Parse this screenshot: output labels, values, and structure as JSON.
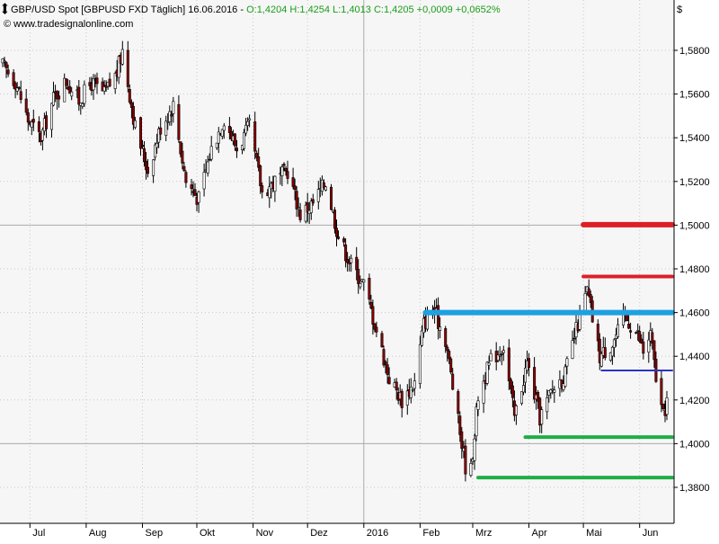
{
  "header": {
    "title": "GBP/USD Spot [GBPUSD FXD  Täglich] 16.06.2016 - ",
    "ohlc": "O:1,4204 H:1,4254 L:1,4013 C:1,4205 +0,0009 +0,0652%",
    "source": "© www.tradesignalonline.com",
    "currency_symbol": "$"
  },
  "colors": {
    "background": "#ffffff",
    "plot_background": "#f6f6f6",
    "grid": "#c8c8c8",
    "bull_candle": "#ffffff",
    "bear_candle": "#8b0000",
    "wick": "#000000",
    "ohlc_text": "#1a9e1a",
    "red": "#dd1f26",
    "blue": "#1da1e0",
    "navy": "#2b35c0",
    "green": "#1fae45"
  },
  "chart_data": {
    "type": "candlestick",
    "x_axis": {
      "range": [
        "2015-06-16",
        "2016-06-16"
      ],
      "month_labels": [
        {
          "date": "2015-07-01",
          "label": "Jul"
        },
        {
          "date": "2015-08-01",
          "label": "Aug"
        },
        {
          "date": "2015-09-01",
          "label": "Sep"
        },
        {
          "date": "2015-10-01",
          "label": "Okt"
        },
        {
          "date": "2015-11-01",
          "label": "Nov"
        },
        {
          "date": "2015-12-01",
          "label": "Dez"
        },
        {
          "date": "2016-01-01",
          "label": "2016"
        },
        {
          "date": "2016-02-01",
          "label": "Feb"
        },
        {
          "date": "2016-03-01",
          "label": "Mrz"
        },
        {
          "date": "2016-04-01",
          "label": "Apr"
        },
        {
          "date": "2016-05-01",
          "label": "Mai"
        },
        {
          "date": "2016-06-01",
          "label": "Jun"
        }
      ]
    },
    "y_axis": {
      "range": [
        1.37,
        1.59
      ],
      "ticks": [
        1.58,
        1.56,
        1.54,
        1.52,
        1.5,
        1.48,
        1.46,
        1.44,
        1.42,
        1.4,
        1.38
      ],
      "tick_labels": [
        "1,5800",
        "1,5600",
        "1,5400",
        "1,5200",
        "1,5000",
        "1,4800",
        "1,4600",
        "1,4400",
        "1,4200",
        "1,4000",
        "1,3800"
      ],
      "solid_grid": [
        1.5,
        1.4
      ]
    },
    "close_path": [
      [
        "2015-06-16",
        1.573
      ],
      [
        "2015-06-23",
        1.566
      ],
      [
        "2015-06-30",
        1.548
      ],
      [
        "2015-07-07",
        1.54
      ],
      [
        "2015-07-14",
        1.558
      ],
      [
        "2015-07-21",
        1.566
      ],
      [
        "2015-07-28",
        1.557
      ],
      [
        "2015-08-04",
        1.565
      ],
      [
        "2015-08-11",
        1.56
      ],
      [
        "2015-08-18",
        1.57
      ],
      [
        "2015-08-21",
        1.58
      ],
      [
        "2015-08-28",
        1.545
      ],
      [
        "2015-09-04",
        1.525
      ],
      [
        "2015-09-11",
        1.545
      ],
      [
        "2015-09-18",
        1.555
      ],
      [
        "2015-09-25",
        1.52
      ],
      [
        "2015-10-02",
        1.512
      ],
      [
        "2015-10-09",
        1.535
      ],
      [
        "2015-10-16",
        1.549
      ],
      [
        "2015-10-23",
        1.535
      ],
      [
        "2015-10-30",
        1.545
      ],
      [
        "2015-11-06",
        1.515
      ],
      [
        "2015-11-13",
        1.52
      ],
      [
        "2015-11-20",
        1.525
      ],
      [
        "2015-11-27",
        1.505
      ],
      [
        "2015-12-04",
        1.51
      ],
      [
        "2015-12-11",
        1.52
      ],
      [
        "2015-12-18",
        1.495
      ],
      [
        "2015-12-25",
        1.482
      ],
      [
        "2016-01-01",
        1.473
      ],
      [
        "2016-01-08",
        1.452
      ],
      [
        "2016-01-15",
        1.43
      ],
      [
        "2016-01-22",
        1.42
      ],
      [
        "2016-01-29",
        1.428
      ],
      [
        "2016-02-03",
        1.455
      ],
      [
        "2016-02-08",
        1.462
      ],
      [
        "2016-02-15",
        1.448
      ],
      [
        "2016-02-22",
        1.41
      ],
      [
        "2016-02-26",
        1.39
      ],
      [
        "2016-02-29",
        1.388
      ],
      [
        "2016-03-04",
        1.422
      ],
      [
        "2016-03-11",
        1.438
      ],
      [
        "2016-03-18",
        1.445
      ],
      [
        "2016-03-24",
        1.412
      ],
      [
        "2016-03-31",
        1.437
      ],
      [
        "2016-04-07",
        1.412
      ],
      [
        "2016-04-14",
        1.425
      ],
      [
        "2016-04-21",
        1.432
      ],
      [
        "2016-04-28",
        1.455
      ],
      [
        "2016-05-03",
        1.47
      ],
      [
        "2016-05-10",
        1.44
      ],
      [
        "2016-05-17",
        1.446
      ],
      [
        "2016-05-24",
        1.458
      ],
      [
        "2016-05-31",
        1.45
      ],
      [
        "2016-06-03",
        1.442
      ],
      [
        "2016-06-07",
        1.45
      ],
      [
        "2016-06-10",
        1.43
      ],
      [
        "2016-06-14",
        1.412
      ],
      [
        "2016-06-16",
        1.4205
      ]
    ],
    "levels": [
      {
        "price": 1.5002,
        "start": "2016-05-01",
        "color_key": "red",
        "weight": "thick"
      },
      {
        "price": 1.4765,
        "start": "2016-05-01",
        "color_key": "red",
        "weight": "medium"
      },
      {
        "price": 1.46,
        "start": "2016-02-04",
        "color_key": "blue",
        "weight": "thick"
      },
      {
        "price": 1.4335,
        "start": "2016-05-11",
        "color_key": "navy",
        "weight": "thin"
      },
      {
        "price": 1.403,
        "start": "2016-03-30",
        "color_key": "green",
        "weight": "medium"
      },
      {
        "price": 1.3845,
        "start": "2016-03-04",
        "color_key": "green",
        "weight": "medium"
      }
    ]
  }
}
